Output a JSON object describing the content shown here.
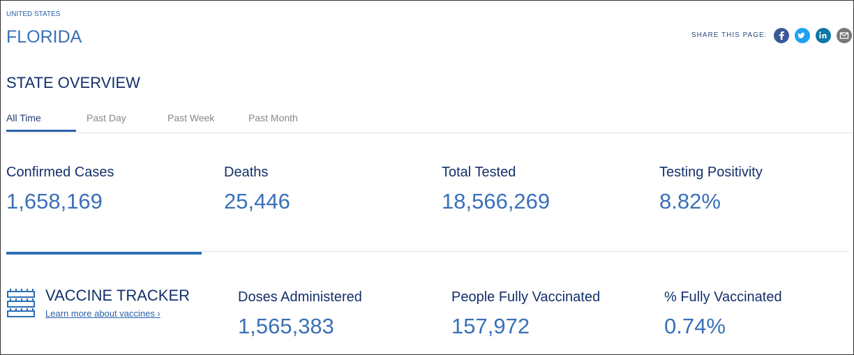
{
  "header": {
    "breadcrumb": "UNITED STATES",
    "title": "FLORIDA",
    "share_label": "SHARE THIS PAGE:"
  },
  "overview": {
    "title": "STATE OVERVIEW",
    "tabs": [
      "All Time",
      "Past Day",
      "Past Week",
      "Past Month"
    ],
    "stats": [
      {
        "label": "Confirmed Cases",
        "value": "1,658,169"
      },
      {
        "label": "Deaths",
        "value": "25,446"
      },
      {
        "label": "Total Tested",
        "value": "18,566,269"
      },
      {
        "label": "Testing Positivity",
        "value": "8.82%"
      }
    ]
  },
  "vaccine": {
    "title": "VACCINE TRACKER",
    "link": "Learn more about vaccines ›",
    "stats": [
      {
        "label": "Doses Administered",
        "value": "1,565,383"
      },
      {
        "label": "People Fully Vaccinated",
        "value": "157,972"
      },
      {
        "label": "% Fully Vaccinated",
        "value": "0.74%"
      }
    ]
  }
}
